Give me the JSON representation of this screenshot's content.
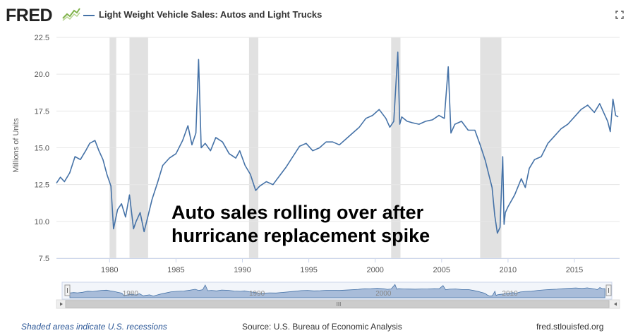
{
  "header": {
    "logo_text": "FRED",
    "series_title": "Light Weight Vehicle Sales: Autos and Light Trucks",
    "fullscreen_icon": "fullscreen-icon"
  },
  "annotation": {
    "line1": "Auto sales rolling over after",
    "line2": "hurricane replacement spike"
  },
  "footer": {
    "recession_note": "Shaded areas indicate U.S. recessions",
    "source": "Source: U.S. Bureau of Economic Analysis",
    "site": "fred.stlouisfed.org"
  },
  "navigator": {
    "labels": [
      "1980",
      "1990",
      "2000",
      "2010"
    ],
    "scrollbar_grip": "III"
  },
  "colors": {
    "series": "#4572a7",
    "recession": "#e1e1e1",
    "navigator_fill": "#a8bcd9"
  },
  "chart_data": {
    "type": "line",
    "title": "Light Weight Vehicle Sales: Autos and Light Trucks",
    "xlabel": "",
    "ylabel": "Millions of Units",
    "xlim": [
      1976,
      2018.4
    ],
    "ylim": [
      7.5,
      22.5
    ],
    "yticks": [
      7.5,
      10.0,
      12.5,
      15.0,
      17.5,
      20.0,
      22.5
    ],
    "ytick_labels": [
      "7.5",
      "10.0",
      "12.5",
      "15.0",
      "17.5",
      "20.0",
      "22.5"
    ],
    "xticks": [
      1980,
      1985,
      1990,
      1995,
      2000,
      2005,
      2010,
      2015
    ],
    "xtick_labels": [
      "1980",
      "1985",
      "1990",
      "1995",
      "2000",
      "2005",
      "2010",
      "2015"
    ],
    "recessions": [
      [
        1980.0,
        1980.5
      ],
      [
        1981.5,
        1982.9
      ],
      [
        1990.5,
        1991.2
      ],
      [
        2001.2,
        2001.9
      ],
      [
        2007.9,
        2009.5
      ]
    ],
    "series": [
      {
        "name": "Light Weight Vehicle Sales: Autos and Light Trucks",
        "x": [
          1976.0,
          1976.3,
          1976.6,
          1977.0,
          1977.4,
          1977.8,
          1978.2,
          1978.5,
          1978.9,
          1979.2,
          1979.5,
          1979.8,
          1980.1,
          1980.3,
          1980.6,
          1980.9,
          1981.2,
          1981.5,
          1981.8,
          1982.0,
          1982.3,
          1982.6,
          1982.9,
          1983.2,
          1983.6,
          1984.0,
          1984.5,
          1985.0,
          1985.5,
          1985.9,
          1986.2,
          1986.5,
          1986.7,
          1986.9,
          1987.2,
          1987.6,
          1988.0,
          1988.5,
          1989.0,
          1989.5,
          1989.8,
          1990.2,
          1990.6,
          1991.0,
          1991.3,
          1991.8,
          1992.3,
          1992.8,
          1993.3,
          1993.8,
          1994.3,
          1994.8,
          1995.3,
          1995.8,
          1996.3,
          1996.8,
          1997.3,
          1997.8,
          1998.3,
          1998.8,
          1999.3,
          1999.8,
          2000.3,
          2000.8,
          2001.1,
          2001.4,
          2001.7,
          2001.85,
          2002.0,
          2002.4,
          2002.8,
          2003.3,
          2003.8,
          2004.3,
          2004.8,
          2005.2,
          2005.5,
          2005.7,
          2006.0,
          2006.5,
          2007.0,
          2007.5,
          2007.9,
          2008.3,
          2008.6,
          2008.8,
          2009.0,
          2009.2,
          2009.4,
          2009.6,
          2009.7,
          2009.8,
          2010.0,
          2010.5,
          2011.0,
          2011.3,
          2011.6,
          2012.0,
          2012.5,
          2013.0,
          2013.5,
          2014.0,
          2014.5,
          2015.0,
          2015.5,
          2016.0,
          2016.5,
          2016.9,
          2017.2,
          2017.5,
          2017.7,
          2017.9,
          2018.1,
          2018.3
        ],
        "values": [
          12.6,
          13.0,
          12.7,
          13.3,
          14.4,
          14.2,
          14.8,
          15.3,
          15.5,
          14.8,
          14.2,
          13.2,
          12.4,
          9.5,
          10.8,
          11.2,
          10.3,
          11.8,
          9.5,
          10.0,
          10.6,
          9.3,
          10.4,
          11.5,
          12.6,
          13.8,
          14.3,
          14.6,
          15.5,
          16.5,
          15.2,
          16.0,
          21.0,
          15.0,
          15.3,
          14.8,
          15.7,
          15.4,
          14.6,
          14.3,
          14.8,
          13.8,
          13.2,
          12.1,
          12.4,
          12.7,
          12.5,
          13.1,
          13.7,
          14.4,
          15.1,
          15.3,
          14.8,
          15.0,
          15.4,
          15.4,
          15.2,
          15.6,
          16.0,
          16.4,
          17.0,
          17.2,
          17.6,
          17.0,
          16.4,
          16.8,
          21.5,
          16.6,
          17.1,
          16.8,
          16.7,
          16.6,
          16.8,
          16.9,
          17.2,
          17.0,
          20.5,
          16.0,
          16.6,
          16.8,
          16.2,
          16.2,
          15.2,
          14.1,
          13.0,
          12.3,
          10.4,
          9.2,
          9.6,
          14.4,
          9.8,
          10.6,
          11.0,
          11.8,
          12.9,
          12.3,
          13.6,
          14.2,
          14.4,
          15.3,
          15.8,
          16.3,
          16.6,
          17.1,
          17.6,
          17.9,
          17.4,
          18.0,
          17.4,
          16.8,
          16.1,
          18.3,
          17.2,
          17.1
        ]
      }
    ]
  }
}
